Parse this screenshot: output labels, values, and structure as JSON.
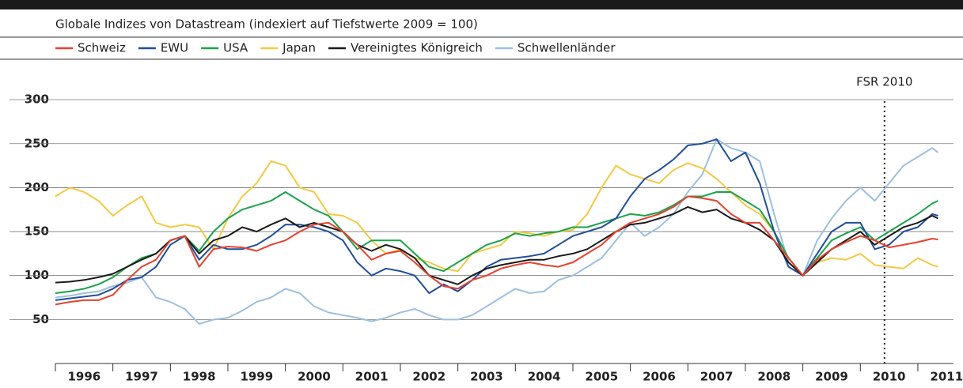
{
  "chart_data": {
    "type": "line",
    "subtitle": "Globale Indizes von Datastream (indexiert auf Tiefstwerte 2009 = 100)",
    "annotation": {
      "text": "FSR 2010",
      "x": 2010.42
    },
    "x": [
      1996,
      1996.25,
      1996.5,
      1996.75,
      1997,
      1997.25,
      1997.5,
      1997.75,
      1998,
      1998.25,
      1998.5,
      1998.75,
      1999,
      1999.25,
      1999.5,
      1999.75,
      2000,
      2000.25,
      2000.5,
      2000.75,
      2001,
      2001.25,
      2001.5,
      2001.75,
      2002,
      2002.25,
      2002.5,
      2002.75,
      2003,
      2003.25,
      2003.5,
      2003.75,
      2004,
      2004.25,
      2004.5,
      2004.75,
      2005,
      2005.25,
      2005.5,
      2005.75,
      2006,
      2006.25,
      2006.5,
      2006.75,
      2007,
      2007.25,
      2007.5,
      2007.75,
      2008,
      2008.25,
      2008.5,
      2008.75,
      2009,
      2009.25,
      2009.5,
      2009.75,
      2010,
      2010.25,
      2010.5,
      2010.75,
      2011,
      2011.25,
      2011.35
    ],
    "series": [
      {
        "name": "Schweiz",
        "color": "#e8412c",
        "values": [
          67,
          70,
          72,
          72,
          78,
          95,
          110,
          118,
          140,
          145,
          110,
          130,
          133,
          132,
          128,
          135,
          140,
          150,
          158,
          160,
          150,
          135,
          118,
          125,
          128,
          115,
          100,
          88,
          85,
          95,
          100,
          108,
          112,
          115,
          112,
          110,
          115,
          125,
          135,
          150,
          160,
          165,
          170,
          178,
          190,
          188,
          185,
          170,
          160,
          160,
          140,
          120,
          100,
          118,
          130,
          138,
          145,
          140,
          132,
          135,
          138,
          142,
          141
        ]
      },
      {
        "name": "EWU",
        "color": "#1f4e9c",
        "values": [
          72,
          74,
          76,
          78,
          85,
          95,
          98,
          110,
          135,
          145,
          118,
          135,
          130,
          130,
          135,
          145,
          158,
          158,
          155,
          150,
          140,
          115,
          100,
          108,
          105,
          100,
          80,
          90,
          82,
          95,
          110,
          118,
          120,
          122,
          125,
          135,
          145,
          150,
          155,
          165,
          190,
          210,
          220,
          232,
          248,
          250,
          255,
          230,
          240,
          205,
          150,
          110,
          100,
          125,
          150,
          160,
          160,
          130,
          135,
          150,
          155,
          170,
          168
        ]
      },
      {
        "name": "USA",
        "color": "#1aa34a",
        "values": [
          80,
          82,
          85,
          90,
          98,
          110,
          120,
          125,
          140,
          145,
          128,
          150,
          165,
          175,
          180,
          185,
          195,
          185,
          175,
          168,
          150,
          130,
          140,
          140,
          140,
          125,
          110,
          105,
          115,
          125,
          135,
          140,
          148,
          145,
          148,
          150,
          155,
          155,
          160,
          165,
          170,
          168,
          172,
          180,
          190,
          190,
          195,
          195,
          185,
          175,
          150,
          120,
          100,
          120,
          140,
          148,
          155,
          140,
          150,
          160,
          170,
          182,
          185
        ]
      },
      {
        "name": "Japan",
        "color": "#f5c842",
        "values": [
          190,
          200,
          195,
          185,
          168,
          180,
          190,
          160,
          155,
          158,
          155,
          130,
          165,
          190,
          205,
          230,
          225,
          200,
          195,
          170,
          168,
          160,
          140,
          125,
          130,
          120,
          115,
          108,
          105,
          125,
          130,
          135,
          150,
          148,
          145,
          150,
          152,
          170,
          200,
          225,
          215,
          210,
          205,
          220,
          228,
          222,
          210,
          195,
          180,
          170,
          150,
          120,
          100,
          115,
          120,
          118,
          125,
          112,
          110,
          108,
          120,
          112,
          110
        ]
      },
      {
        "name": "Vereinigtes Königreich",
        "color": "#1a1a1a",
        "values": [
          92,
          93,
          95,
          98,
          102,
          110,
          118,
          125,
          140,
          145,
          125,
          140,
          145,
          155,
          150,
          158,
          165,
          155,
          160,
          155,
          150,
          135,
          128,
          135,
          130,
          120,
          100,
          95,
          90,
          100,
          108,
          112,
          115,
          118,
          118,
          122,
          125,
          130,
          140,
          150,
          158,
          160,
          165,
          170,
          178,
          172,
          175,
          165,
          160,
          152,
          140,
          115,
          100,
          115,
          130,
          140,
          150,
          135,
          145,
          155,
          160,
          168,
          165
        ]
      },
      {
        "name": "Schwellenländer",
        "color": "#9dbfe0",
        "values": [
          75,
          77,
          80,
          82,
          88,
          92,
          98,
          75,
          70,
          62,
          45,
          50,
          52,
          60,
          70,
          75,
          85,
          80,
          65,
          58,
          55,
          52,
          48,
          52,
          58,
          62,
          55,
          50,
          50,
          55,
          65,
          75,
          85,
          80,
          82,
          95,
          100,
          110,
          120,
          140,
          160,
          145,
          155,
          170,
          195,
          215,
          255,
          245,
          240,
          230,
          170,
          115,
          100,
          140,
          165,
          185,
          200,
          185,
          205,
          225,
          235,
          245,
          240
        ]
      }
    ],
    "xlim": [
      1996,
      2011.62
    ],
    "xticks": [
      1996,
      1997,
      1998,
      1999,
      2000,
      2001,
      2002,
      2003,
      2004,
      2005,
      2006,
      2007,
      2008,
      2009,
      2010,
      2011
    ],
    "ylim": [
      0,
      310
    ],
    "yticks": [
      50,
      100,
      150,
      200,
      250,
      300
    ],
    "grid": true
  }
}
